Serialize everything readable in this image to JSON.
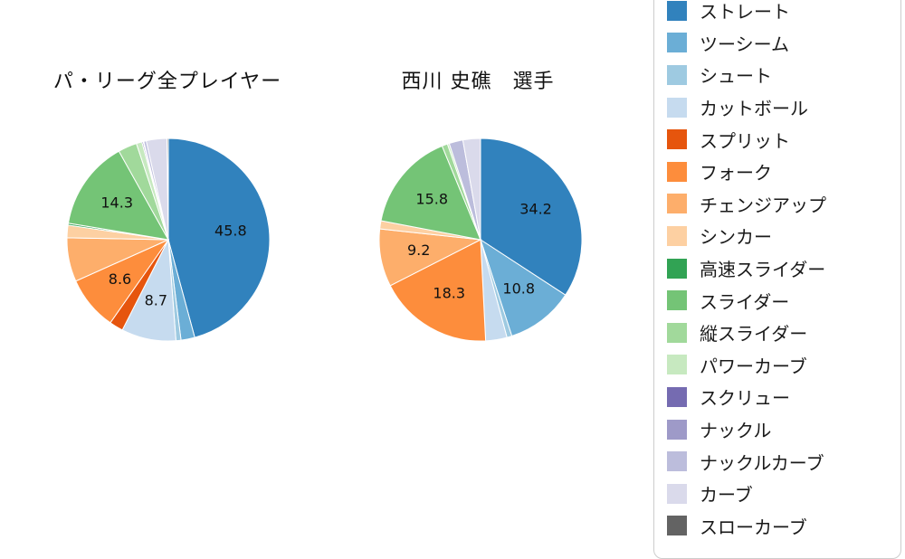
{
  "page": {
    "background": "#ffffff"
  },
  "chart_data": [
    {
      "type": "pie",
      "title": "パ・リーグ全プレイヤー",
      "start_angle": "top",
      "direction": "clockwise",
      "label_threshold": 8,
      "categories": [
        "ストレート",
        "ツーシーム",
        "シュート",
        "カットボール",
        "スプリット",
        "フォーク",
        "チェンジアップ",
        "シンカー",
        "高速スライダー",
        "スライダー",
        "縦スライダー",
        "パワーカーブ",
        "スクリュー",
        "ナックル",
        "ナックルカーブ",
        "カーブ",
        "スローカーブ"
      ],
      "values": [
        45.8,
        2.2,
        0.8,
        8.7,
        2.2,
        8.6,
        7.0,
        2.0,
        0.3,
        14.3,
        3.0,
        0.9,
        0.2,
        0.1,
        0.4,
        3.3,
        0.2
      ],
      "labeled_values": {
        "ストレート": 45.8,
        "カットボール": 8.7,
        "フォーク": 8.6,
        "スライダー": 14.3
      }
    },
    {
      "type": "pie",
      "title": "西川 史礁　選手",
      "start_angle": "top",
      "direction": "clockwise",
      "label_threshold": 8,
      "categories": [
        "ストレート",
        "ツーシーム",
        "シュート",
        "カットボール",
        "スプリット",
        "フォーク",
        "チェンジアップ",
        "シンカー",
        "高速スライダー",
        "スライダー",
        "縦スライダー",
        "パワーカーブ",
        "スクリュー",
        "ナックル",
        "ナックルカーブ",
        "カーブ",
        "スローカーブ"
      ],
      "values": [
        34.2,
        10.8,
        0.8,
        3.4,
        0.0,
        18.3,
        9.2,
        1.3,
        0.0,
        15.8,
        0.9,
        0.3,
        0.0,
        0.0,
        2.2,
        2.8,
        0.0
      ],
      "labeled_values": {
        "ストレート": 34.2,
        "ツーシーム": 10.8,
        "フォーク": 18.3,
        "チェンジアップ": 9.2,
        "スライダー": 15.8
      }
    }
  ],
  "legend": {
    "position": "right",
    "items": [
      {
        "label": "ストレート",
        "color": "#3182bd"
      },
      {
        "label": "ツーシーム",
        "color": "#6baed6"
      },
      {
        "label": "シュート",
        "color": "#9ecae1"
      },
      {
        "label": "カットボール",
        "color": "#c6dbef"
      },
      {
        "label": "スプリット",
        "color": "#e6550d"
      },
      {
        "label": "フォーク",
        "color": "#fd8d3c"
      },
      {
        "label": "チェンジアップ",
        "color": "#fdae6b"
      },
      {
        "label": "シンカー",
        "color": "#fdd0a2"
      },
      {
        "label": "高速スライダー",
        "color": "#31a354"
      },
      {
        "label": "スライダー",
        "color": "#74c476"
      },
      {
        "label": "縦スライダー",
        "color": "#a1d99b"
      },
      {
        "label": "パワーカーブ",
        "color": "#c7e9c0"
      },
      {
        "label": "スクリュー",
        "color": "#756bb1"
      },
      {
        "label": "ナックル",
        "color": "#9e9ac8"
      },
      {
        "label": "ナックルカーブ",
        "color": "#bcbddc"
      },
      {
        "label": "カーブ",
        "color": "#dadaeb"
      },
      {
        "label": "スローカーブ",
        "color": "#636363"
      }
    ]
  }
}
